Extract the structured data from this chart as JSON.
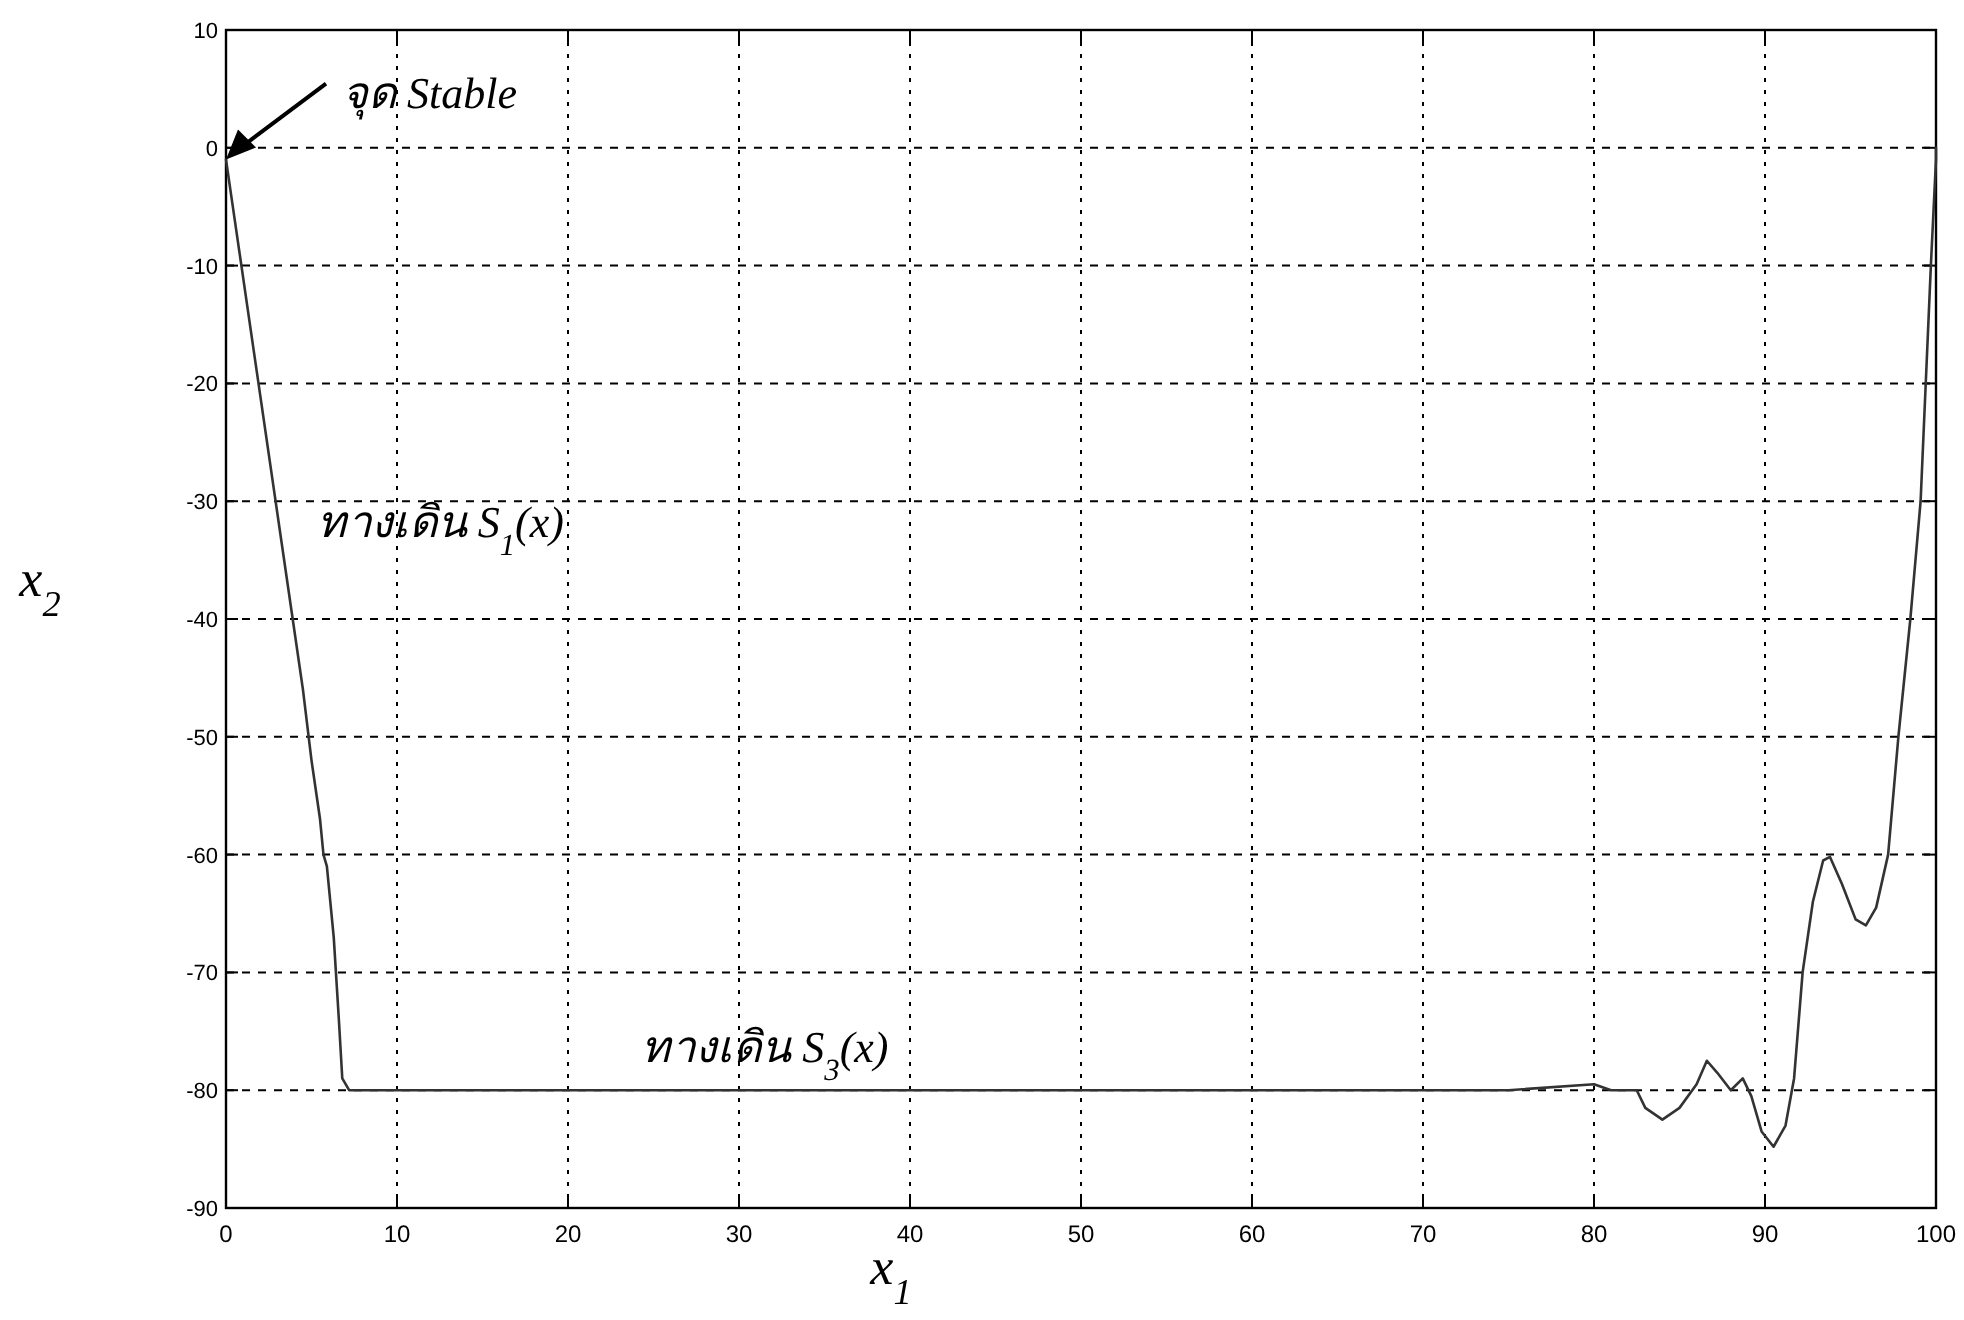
{
  "chart_data": {
    "type": "line",
    "xlabel": "x$_{1}$",
    "ylabel": "x$_{2}$",
    "xlim": [
      0,
      100
    ],
    "ylim": [
      -90,
      10
    ],
    "xticks": [
      0,
      10,
      20,
      30,
      40,
      50,
      60,
      70,
      80,
      90,
      100
    ],
    "yticks": [
      -90,
      -80,
      -70,
      -60,
      -50,
      -40,
      -30,
      -20,
      -10,
      0,
      10
    ],
    "grid": true,
    "line_style": "solid",
    "marker": "none",
    "series": [
      {
        "color": "#333333",
        "x": [
          0,
          0.8,
          1.8,
          2.8,
          3.9,
          4.5,
          5.0,
          5.5,
          5.7,
          5.9,
          6.3,
          6.6,
          6.8,
          7.2,
          10,
          20,
          30,
          40,
          50,
          60,
          70,
          75,
          80,
          81,
          82.5,
          83,
          84,
          85,
          86,
          86.6,
          87.2,
          88,
          88.7,
          89.2,
          89.8,
          90.5,
          91.2,
          91.7,
          92.2,
          92.8,
          93.4,
          93.8,
          94.5,
          95.3,
          95.9,
          96.5,
          97.2,
          97.8,
          98.5,
          99.1,
          99.7,
          100,
          100
        ],
        "values": [
          -1,
          -9,
          -19,
          -29,
          -40,
          -46,
          -52,
          -57,
          -60,
          -61,
          -67,
          -74,
          -79,
          -80,
          -80,
          -80,
          -80,
          -80,
          -80,
          -80,
          -80,
          -80,
          -79.5,
          -80,
          -80,
          -81.5,
          -82.5,
          -81.5,
          -79.5,
          -77.5,
          -78.5,
          -80,
          -79,
          -80.5,
          -83.5,
          -84.8,
          -83,
          -79,
          -70,
          -64,
          -60.5,
          -60.2,
          -62.5,
          -65.5,
          -66,
          -64.5,
          -60,
          -50,
          -40,
          -30,
          -10,
          -1,
          0
        ]
      }
    ],
    "annotations": [
      {
        "text": "จุด Stable",
        "x": 0,
        "y": -1
      },
      "ทางเดิน S$_{1}$(x)",
      {
        "text": "ทางเดิน S$_{3}$(x)",
        "x": 43,
        "y": -80
      }
    ]
  }
}
